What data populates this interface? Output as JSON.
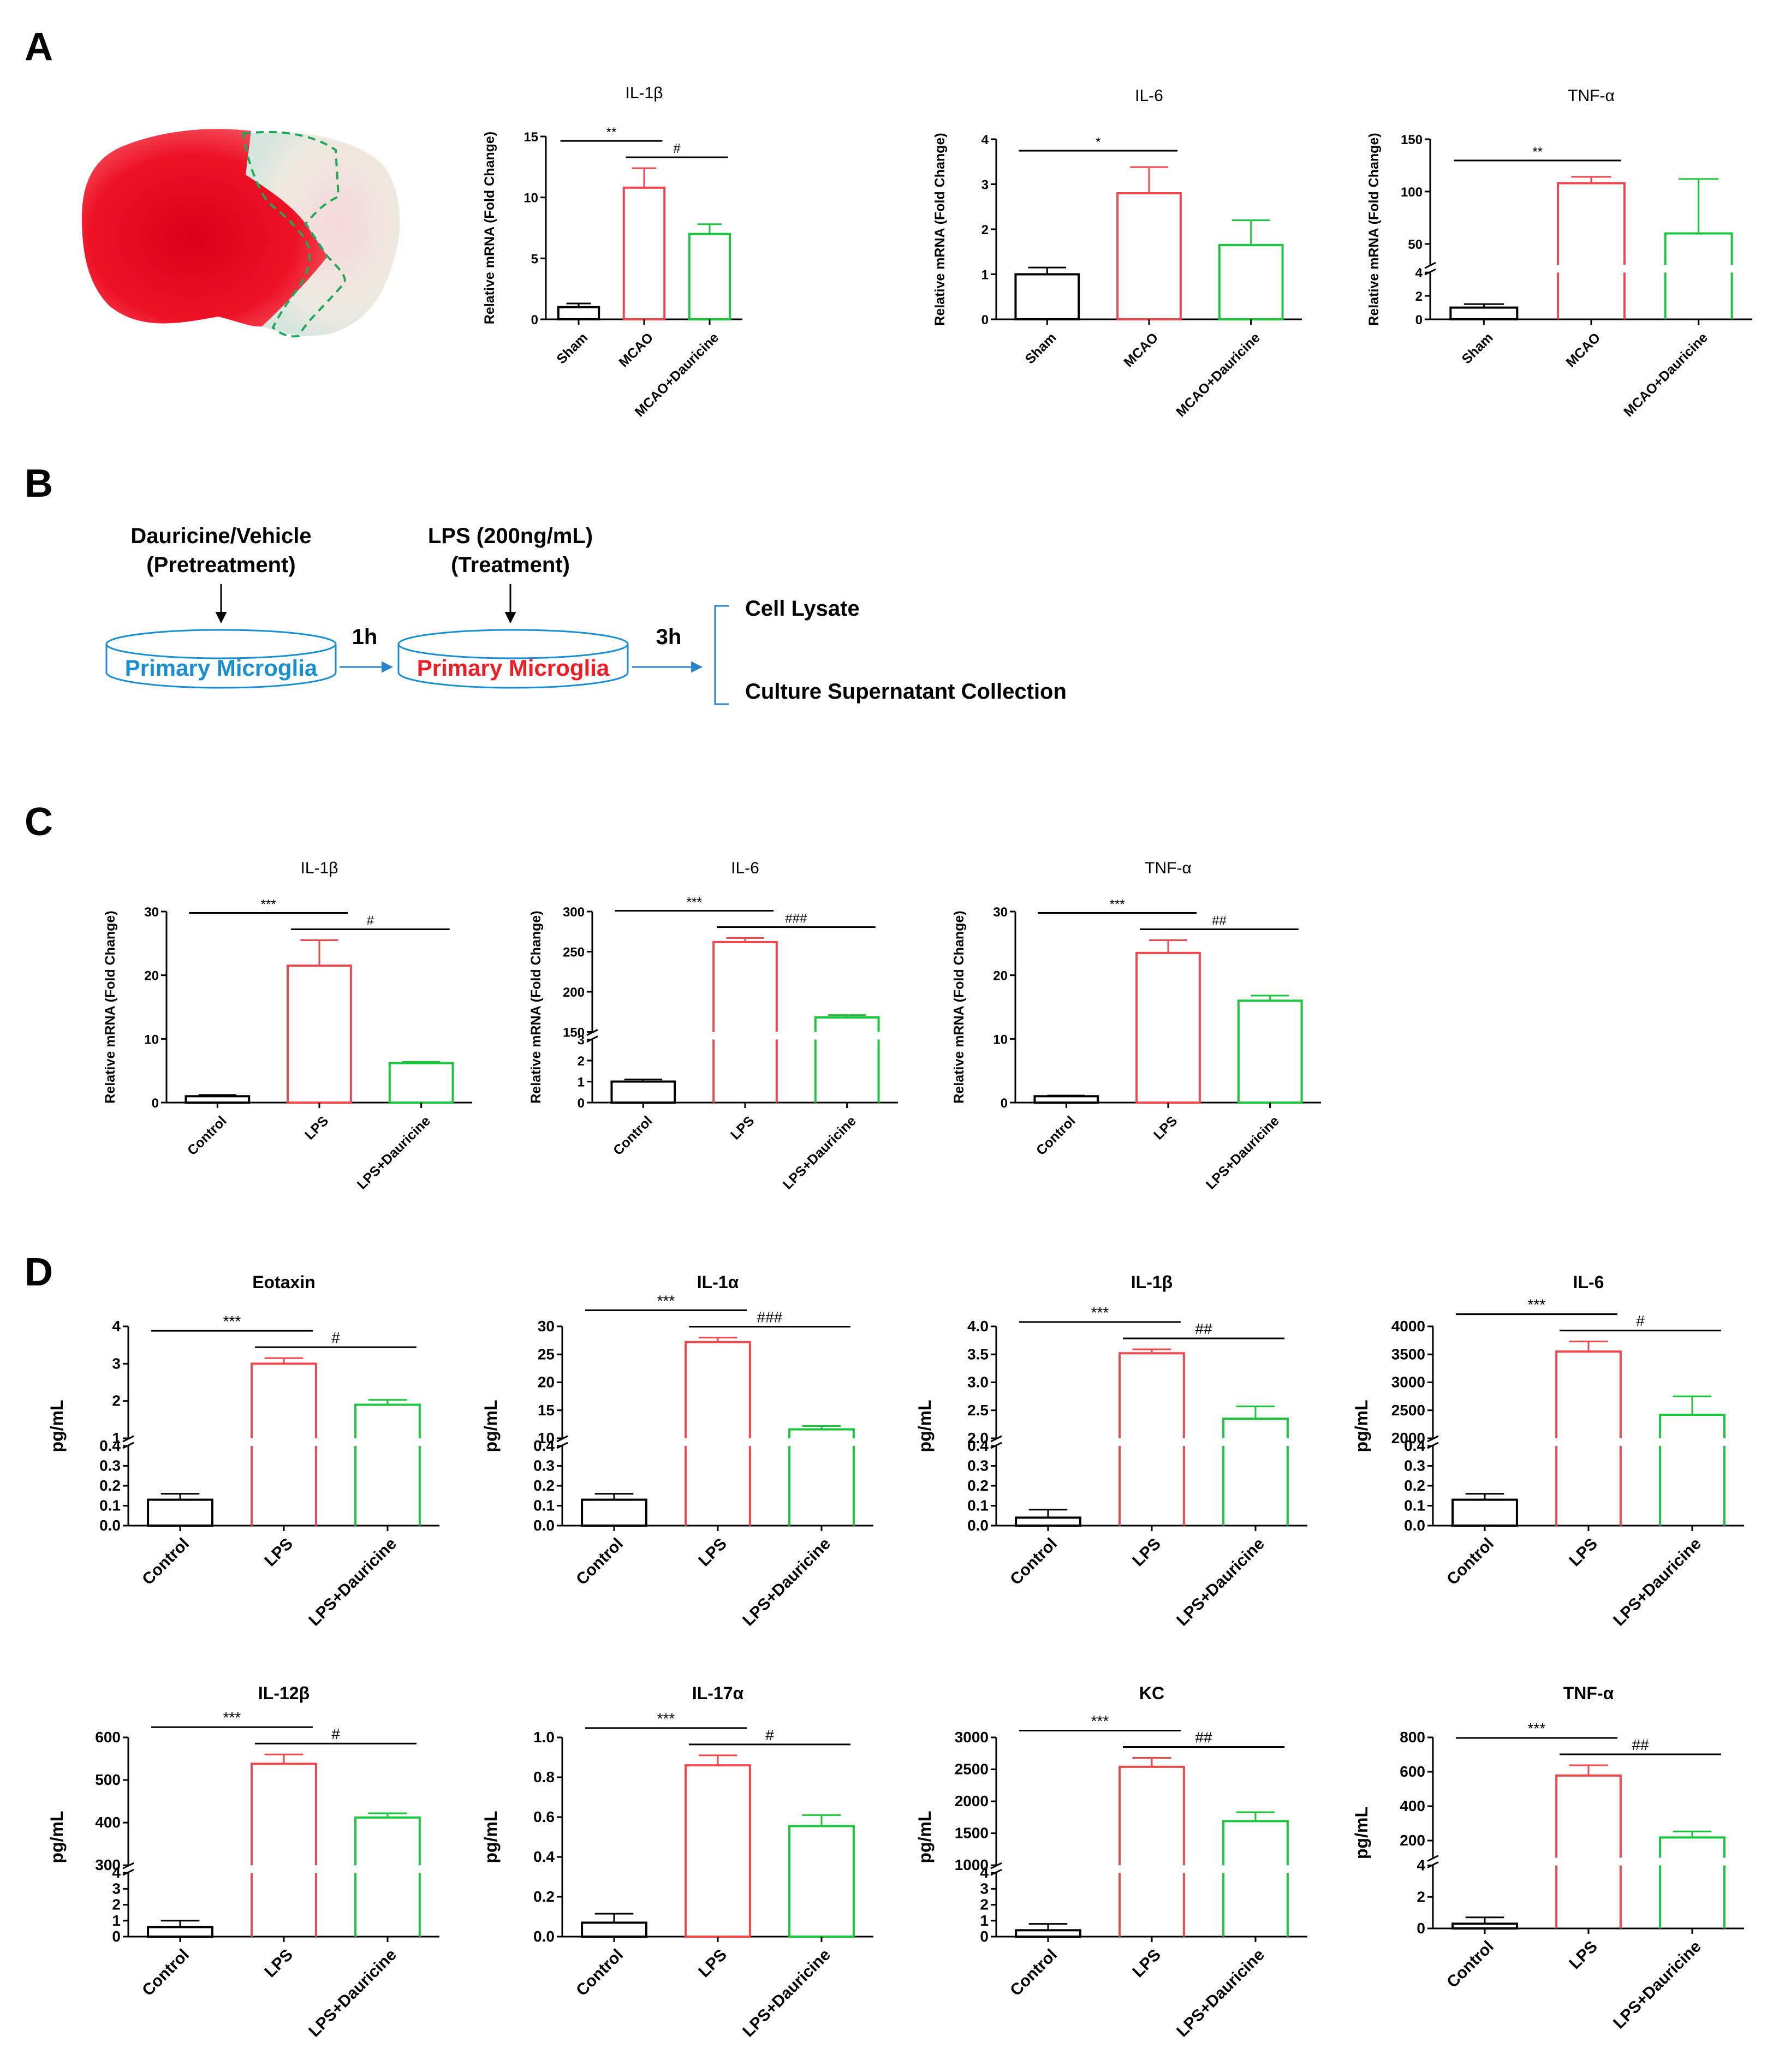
{
  "panels": {
    "a": "A",
    "b": "B",
    "c": "C",
    "d": "D"
  },
  "colors": {
    "sham": "#000000",
    "mcao": "#f0484e",
    "dauricine": "#1ac73c",
    "dish_blue": "#1a8fd0",
    "dish_red": "#ee1c24",
    "arrow": "#2b83c9"
  },
  "flow": {
    "pretreat_line1": "Dauricine/Vehicle",
    "pretreat_line2": "(Pretreatment)",
    "treat_line1": "LPS (200ng/mL)",
    "treat_line2": "(Treatment)",
    "dish1": "Primary Microglia",
    "dish2": "Primary Microglia",
    "time1": "1h",
    "time2": "3h",
    "out1": "Cell Lysate",
    "out2": "Culture Supernatant Collection"
  },
  "chart_data": [
    {
      "id": "a1",
      "type": "bar",
      "title": "IL-1β",
      "ylabel": "Relative mRNA (Fold Change)",
      "categories": [
        "Sham",
        "MCAO",
        "MCAO+Dauricine"
      ],
      "values": [
        1.0,
        10.8,
        7.0
      ],
      "errors": [
        0.3,
        1.6,
        0.8
      ],
      "ylim": [
        0,
        15
      ],
      "yticks": [
        0,
        5,
        10,
        15
      ],
      "significance": [
        {
          "from": 0,
          "to": 1,
          "label": "**"
        },
        {
          "from": 1,
          "to": 2,
          "label": "#"
        }
      ]
    },
    {
      "id": "a2",
      "type": "bar",
      "title": "IL-6",
      "ylabel": "Relative mRNA (Fold Change)",
      "categories": [
        "Sham",
        "MCAO",
        "MCAO+Dauricine"
      ],
      "values": [
        1.0,
        2.8,
        1.65
      ],
      "errors": [
        0.15,
        0.58,
        0.55
      ],
      "ylim": [
        0,
        4
      ],
      "yticks": [
        0,
        1,
        2,
        3,
        4
      ],
      "significance": [
        {
          "from": 0,
          "to": 1,
          "label": "*"
        }
      ]
    },
    {
      "id": "a3",
      "type": "bar",
      "title": "TNF-α",
      "ylabel": "Relative mRNA (Fold Change)",
      "categories": [
        "Sham",
        "MCAO",
        "MCAO+Dauricine"
      ],
      "values": [
        1.0,
        108,
        60
      ],
      "errors": [
        0.3,
        6,
        52
      ],
      "broken_axis": {
        "low": [
          0,
          4
        ],
        "high": [
          30,
          150
        ],
        "low_ticks": [
          0,
          2,
          4
        ],
        "high_ticks": [
          50,
          100,
          150
        ]
      },
      "significance": [
        {
          "from": 0,
          "to": 1,
          "label": "**"
        }
      ]
    },
    {
      "id": "c1",
      "type": "bar",
      "title": "IL-1β",
      "ylabel": "Relative mRNA (Fold Change)",
      "categories": [
        "Control",
        "LPS",
        "LPS+Dauricine"
      ],
      "values": [
        1.0,
        21.5,
        6.2
      ],
      "errors": [
        0.2,
        4.0,
        0.2
      ],
      "ylim": [
        0,
        30
      ],
      "yticks": [
        0,
        10,
        20,
        30
      ],
      "significance": [
        {
          "from": 0,
          "to": 1,
          "label": "***"
        },
        {
          "from": 1,
          "to": 2,
          "label": "#"
        }
      ]
    },
    {
      "id": "c2",
      "type": "bar",
      "title": "IL-6",
      "ylabel": "Relative mRNA (Fold Change)",
      "categories": [
        "Control",
        "LPS",
        "LPS+Dauricine"
      ],
      "values": [
        1.0,
        262,
        168
      ],
      "errors": [
        0.1,
        5,
        3
      ],
      "broken_axis": {
        "low": [
          0,
          3
        ],
        "high": [
          150,
          300
        ],
        "low_ticks": [
          0,
          1,
          2,
          3
        ],
        "high_ticks": [
          150,
          200,
          250,
          300
        ]
      },
      "significance": [
        {
          "from": 0,
          "to": 1,
          "label": "***"
        },
        {
          "from": 1,
          "to": 2,
          "label": "###"
        }
      ]
    },
    {
      "id": "c3",
      "type": "bar",
      "title": "TNF-α",
      "ylabel": "Relative mRNA (Fold Change)",
      "categories": [
        "Control",
        "LPS",
        "LPS+Dauricine"
      ],
      "values": [
        1.0,
        23.5,
        16.0
      ],
      "errors": [
        0.1,
        2.0,
        0.8
      ],
      "ylim": [
        0,
        30
      ],
      "yticks": [
        0,
        10,
        20,
        30
      ],
      "significance": [
        {
          "from": 0,
          "to": 1,
          "label": "***"
        },
        {
          "from": 1,
          "to": 2,
          "label": "##"
        }
      ]
    },
    {
      "id": "d1",
      "type": "bar",
      "title": "Eotaxin",
      "ylabel": "pg/mL",
      "categories": [
        "Control",
        "LPS",
        "LPS+Dauricine"
      ],
      "values": [
        0.13,
        3.0,
        1.9
      ],
      "errors": [
        0.03,
        0.15,
        0.13
      ],
      "broken_axis": {
        "low": [
          0,
          0.4
        ],
        "high": [
          1,
          4
        ],
        "low_ticks": [
          "0.0",
          "0.1",
          "0.2",
          "0.3",
          "0.4"
        ],
        "high_ticks": [
          "1",
          "2",
          "3",
          "4"
        ]
      },
      "significance": [
        {
          "from": 0,
          "to": 1,
          "label": "***"
        },
        {
          "from": 1,
          "to": 2,
          "label": "#"
        }
      ]
    },
    {
      "id": "d2",
      "type": "bar",
      "title": "IL-1α",
      "ylabel": "pg/mL",
      "categories": [
        "Control",
        "LPS",
        "LPS+Dauricine"
      ],
      "values": [
        0.13,
        27.2,
        11.6
      ],
      "errors": [
        0.03,
        0.8,
        0.6
      ],
      "broken_axis": {
        "low": [
          0,
          0.4
        ],
        "high": [
          10,
          30
        ],
        "low_ticks": [
          "0.0",
          "0.1",
          "0.2",
          "0.3",
          "0.4"
        ],
        "high_ticks": [
          "10",
          "15",
          "20",
          "25",
          "30"
        ]
      },
      "significance": [
        {
          "from": 0,
          "to": 1,
          "label": "***"
        },
        {
          "from": 1,
          "to": 2,
          "label": "###"
        }
      ]
    },
    {
      "id": "d3",
      "type": "bar",
      "title": "IL-1β",
      "ylabel": "pg/mL",
      "categories": [
        "Control",
        "LPS",
        "LPS+Dauricine"
      ],
      "values": [
        0.04,
        3.52,
        2.35
      ],
      "errors": [
        0.04,
        0.07,
        0.22
      ],
      "broken_axis": {
        "low": [
          0,
          0.4
        ],
        "high": [
          2.0,
          4.0
        ],
        "low_ticks": [
          "0.0",
          "0.1",
          "0.2",
          "0.3",
          "0.4"
        ],
        "high_ticks": [
          "2.0",
          "2.5",
          "3.0",
          "3.5",
          "4.0"
        ]
      },
      "significance": [
        {
          "from": 0,
          "to": 1,
          "label": "***"
        },
        {
          "from": 1,
          "to": 2,
          "label": "##"
        }
      ]
    },
    {
      "id": "d4",
      "type": "bar",
      "title": "IL-6",
      "ylabel": "pg/mL",
      "categories": [
        "Control",
        "LPS",
        "LPS+Dauricine"
      ],
      "values": [
        0.13,
        3550,
        2420
      ],
      "errors": [
        0.03,
        180,
        330
      ],
      "broken_axis": {
        "low": [
          0,
          0.4
        ],
        "high": [
          2000,
          4000
        ],
        "low_ticks": [
          "0.0",
          "0.1",
          "0.2",
          "0.3",
          "0.4"
        ],
        "high_ticks": [
          "2000",
          "2500",
          "3000",
          "3500",
          "4000"
        ]
      },
      "significance": [
        {
          "from": 0,
          "to": 1,
          "label": "***"
        },
        {
          "from": 1,
          "to": 2,
          "label": "#"
        }
      ]
    },
    {
      "id": "d5",
      "type": "bar",
      "title": "IL-12β",
      "ylabel": "pg/mL",
      "categories": [
        "Control",
        "LPS",
        "LPS+Dauricine"
      ],
      "values": [
        0.6,
        538,
        412
      ],
      "errors": [
        0.4,
        22,
        10
      ],
      "broken_axis": {
        "low": [
          0,
          4
        ],
        "high": [
          300,
          600
        ],
        "low_ticks": [
          "0",
          "1",
          "2",
          "3",
          "4"
        ],
        "high_ticks": [
          "300",
          "400",
          "500",
          "600"
        ]
      },
      "significance": [
        {
          "from": 0,
          "to": 1,
          "label": "***"
        },
        {
          "from": 1,
          "to": 2,
          "label": "#"
        }
      ]
    },
    {
      "id": "d6",
      "type": "bar",
      "title": "IL-17α",
      "ylabel": "pg/mL",
      "categories": [
        "Control",
        "LPS",
        "LPS+Dauricine"
      ],
      "values": [
        0.07,
        0.86,
        0.555
      ],
      "errors": [
        0.045,
        0.05,
        0.055
      ],
      "ylim": [
        0,
        1.0
      ],
      "yticks": [
        "0.0",
        "0.2",
        "0.4",
        "0.6",
        "0.8",
        "1.0"
      ],
      "significance": [
        {
          "from": 0,
          "to": 1,
          "label": "***"
        },
        {
          "from": 1,
          "to": 2,
          "label": "#"
        }
      ]
    },
    {
      "id": "d7",
      "type": "bar",
      "title": "KC",
      "ylabel": "pg/mL",
      "categories": [
        "Control",
        "LPS",
        "LPS+Dauricine"
      ],
      "values": [
        0.4,
        2540,
        1690
      ],
      "errors": [
        0.4,
        140,
        140
      ],
      "broken_axis": {
        "low": [
          0,
          4
        ],
        "high": [
          1000,
          3000
        ],
        "low_ticks": [
          "0",
          "1",
          "2",
          "3",
          "4"
        ],
        "high_ticks": [
          "1000",
          "1500",
          "2000",
          "2500",
          "3000"
        ]
      },
      "significance": [
        {
          "from": 0,
          "to": 1,
          "label": "***"
        },
        {
          "from": 1,
          "to": 2,
          "label": "##"
        }
      ]
    },
    {
      "id": "d8",
      "type": "bar",
      "title": "TNF-α",
      "ylabel": "pg/mL",
      "categories": [
        "Control",
        "LPS",
        "LPS+Dauricine"
      ],
      "values": [
        0.3,
        578,
        218
      ],
      "errors": [
        0.4,
        60,
        35
      ],
      "broken_axis": {
        "low": [
          0,
          4
        ],
        "high": [
          100,
          800
        ],
        "low_ticks": [
          "0",
          "2",
          "4"
        ],
        "high_ticks": [
          "200",
          "400",
          "600",
          "800"
        ]
      },
      "significance": [
        {
          "from": 0,
          "to": 1,
          "label": "***"
        },
        {
          "from": 1,
          "to": 2,
          "label": "##"
        }
      ]
    }
  ]
}
